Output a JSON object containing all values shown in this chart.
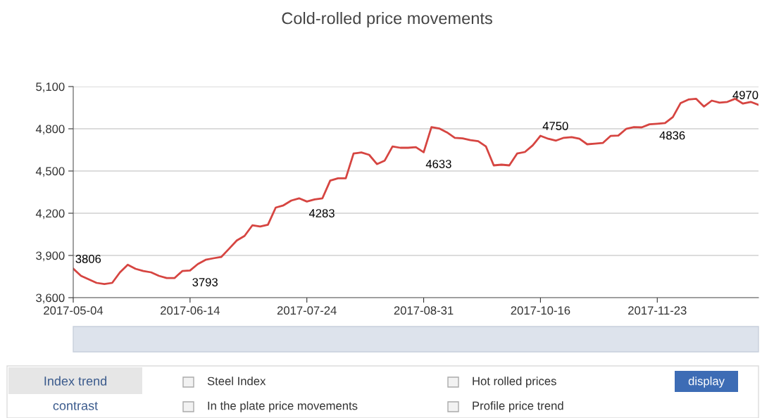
{
  "chart_data": [
    {
      "type": "line",
      "title": "Cold-rolled price movements",
      "categories": [
        "2017-05-04",
        null,
        null,
        null,
        null,
        null,
        null,
        null,
        null,
        null,
        null,
        null,
        null,
        null,
        null,
        "2017-06-14",
        null,
        null,
        null,
        null,
        null,
        null,
        null,
        null,
        null,
        null,
        null,
        null,
        null,
        null,
        "2017-07-24",
        null,
        null,
        null,
        null,
        null,
        null,
        null,
        null,
        null,
        null,
        null,
        null,
        null,
        null,
        "2017-08-31",
        null,
        null,
        null,
        null,
        null,
        null,
        null,
        null,
        null,
        null,
        null,
        null,
        null,
        null,
        "2017-10-16",
        null,
        null,
        null,
        null,
        null,
        null,
        null,
        null,
        null,
        null,
        null,
        null,
        null,
        null,
        "2017-11-23",
        null,
        null,
        null,
        null,
        null,
        null,
        null,
        null,
        null,
        null,
        null,
        null,
        null
      ],
      "series": [
        {
          "color": "#d64541",
          "values": [
            3806,
            3755,
            3730,
            3705,
            3697,
            3705,
            3780,
            3834,
            3805,
            3789,
            3780,
            3755,
            3739,
            3739,
            3789,
            3793,
            3839,
            3869,
            3880,
            3889,
            3947,
            4006,
            4039,
            4114,
            4106,
            4118,
            4240,
            4256,
            4290,
            4306,
            4283,
            4298,
            4306,
            4432,
            4448,
            4448,
            4624,
            4632,
            4615,
            4549,
            4574,
            4674,
            4665,
            4665,
            4669,
            4633,
            4812,
            4802,
            4774,
            4736,
            4732,
            4719,
            4712,
            4674,
            4540,
            4545,
            4540,
            4624,
            4635,
            4682,
            4750,
            4729,
            4716,
            4736,
            4741,
            4729,
            4690,
            4694,
            4699,
            4749,
            4752,
            4799,
            4812,
            4810,
            4832,
            4836,
            4841,
            4883,
            4983,
            5008,
            5013,
            4958,
            5000,
            4986,
            4991,
            5013,
            4979,
            4991,
            4970
          ]
        }
      ],
      "ylim": [
        3600,
        5100
      ],
      "yticks": [
        {
          "value": 3600,
          "label": "3,600"
        },
        {
          "value": 3900,
          "label": "3,900"
        },
        {
          "value": 4200,
          "label": "4,200"
        },
        {
          "value": 4500,
          "label": "4,500"
        },
        {
          "value": 4800,
          "label": "4,800"
        },
        {
          "value": 5100,
          "label": "5,100"
        }
      ],
      "grid": "y",
      "annotations": [
        {
          "text": "3806",
          "x": "2017-05-04",
          "y": 3806
        },
        {
          "text": "3793",
          "x": "2017-06-14",
          "y": 3793
        },
        {
          "text": "4283",
          "x": "2017-07-24",
          "y": 4283
        },
        {
          "text": "4633",
          "x": "2017-08-31",
          "y": 4633
        },
        {
          "text": "4750",
          "x": "2017-10-16",
          "y": 4750
        },
        {
          "text": "4836",
          "x": "2017-11-23",
          "y": 4836
        },
        "4970"
      ]
    },
    {
      "type": "other",
      "annotations": [
        "Index trend",
        "contrast",
        "Steel Index",
        "In the plate price movements",
        "Hot rolled prices",
        "Profile price trend",
        "display"
      ]
    }
  ]
}
